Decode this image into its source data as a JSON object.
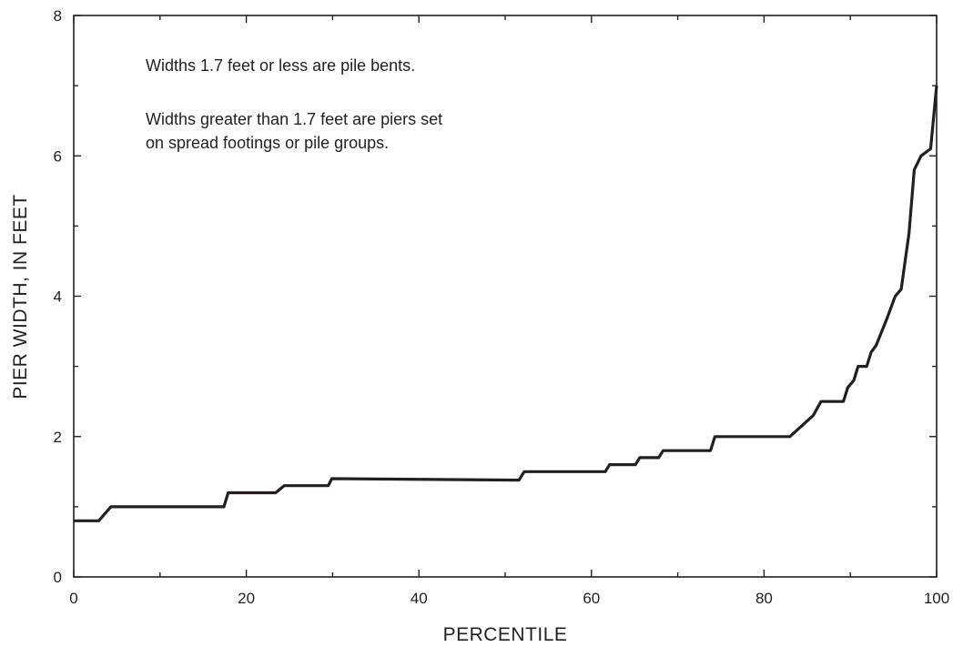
{
  "chart_data": {
    "type": "line",
    "title": "",
    "xlabel": "PERCENTILE",
    "ylabel": "PIER WIDTH, IN FEET",
    "xlim": [
      0,
      100
    ],
    "ylim": [
      0,
      8
    ],
    "x_ticks": [
      0,
      20,
      40,
      60,
      80,
      100
    ],
    "y_ticks": [
      0,
      2,
      4,
      6,
      8
    ],
    "x_tick_labels": [
      "0",
      "20",
      "40",
      "60",
      "80",
      "100"
    ],
    "y_tick_labels": [
      "0",
      "2",
      "4",
      "6",
      "8"
    ],
    "grid": false,
    "legend": "none",
    "line_color": "#231f20",
    "annotations": [
      {
        "lines": [
          "Widths 1.7 feet or less are pile bents."
        ]
      },
      {
        "lines": [
          "Widths greater than 1.7 feet are piers set",
          "on spread footings or pile groups."
        ]
      }
    ],
    "series": [
      {
        "x": [
          0,
          2.9,
          4.3,
          17.4,
          17.9,
          23.4,
          24.4,
          29.5,
          29.9,
          51.6,
          52.2,
          61.6,
          62.1,
          65.1,
          65.6,
          67.8,
          68.3,
          73.8,
          74.3,
          83.0,
          85.7,
          86.6,
          89.2,
          89.7,
          90.4,
          90.9,
          91.9,
          92.4,
          93.0,
          94.3,
          95.2,
          95.9,
          96.8,
          97.4,
          98.2,
          99.3,
          100
        ],
        "y": [
          0.8,
          0.8,
          1.0,
          1.0,
          1.2,
          1.2,
          1.3,
          1.3,
          1.4,
          1.38,
          1.5,
          1.5,
          1.6,
          1.6,
          1.7,
          1.7,
          1.8,
          1.8,
          2.0,
          2.0,
          2.3,
          2.5,
          2.5,
          2.7,
          2.8,
          3.0,
          3.0,
          3.2,
          3.3,
          3.7,
          4.0,
          4.1,
          4.9,
          5.8,
          6.0,
          6.1,
          7.0
        ]
      }
    ]
  }
}
